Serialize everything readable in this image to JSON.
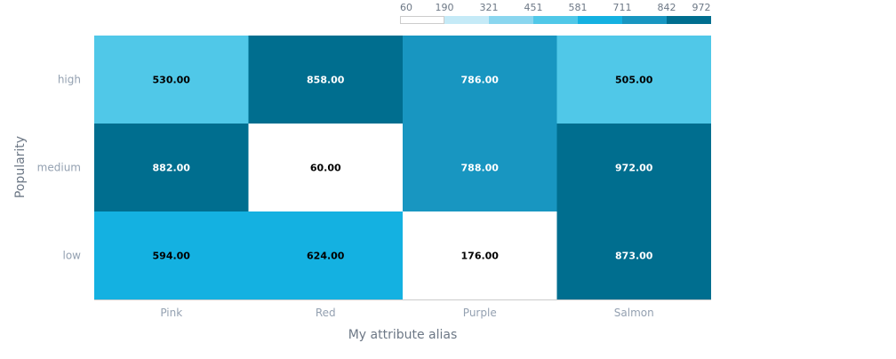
{
  "chart_data": {
    "type": "heatmap",
    "xlabel": "My attribute alias",
    "ylabel": "Popularity",
    "x_categories": [
      "Pink",
      "Red",
      "Purple",
      "Salmon"
    ],
    "y_categories": [
      "high",
      "medium",
      "low"
    ],
    "values": [
      [
        530,
        858,
        786,
        505
      ],
      [
        882,
        60,
        788,
        972
      ],
      [
        594,
        624,
        176,
        873
      ]
    ],
    "value_labels": [
      [
        "530.00",
        "858.00",
        "786.00",
        "505.00"
      ],
      [
        "882.00",
        "60.00",
        "788.00",
        "972.00"
      ],
      [
        "594.00",
        "624.00",
        "176.00",
        "873.00"
      ]
    ],
    "legend": {
      "position": "top-right",
      "ticks": [
        "60",
        "190",
        "321",
        "451",
        "581",
        "711",
        "842",
        "972"
      ],
      "colors": [
        "#ffffff",
        "#c5eaf7",
        "#8ad6ef",
        "#50c8e8",
        "#14b1e1",
        "#1896c1",
        "#006e8f"
      ]
    },
    "colors": {
      "low_text": "#000000",
      "high_text": "#ffffff",
      "axis_line": "#cccccc",
      "legend_border": "#cccccc"
    }
  }
}
